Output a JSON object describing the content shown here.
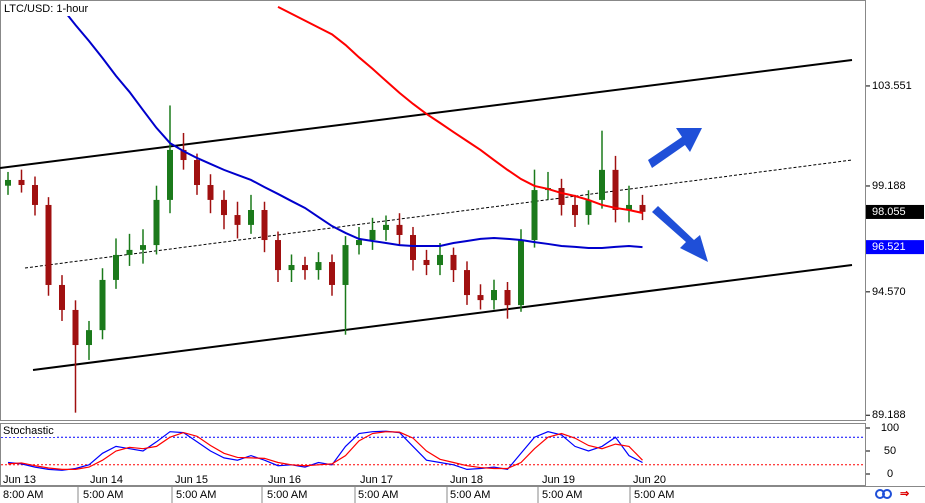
{
  "chart_data": {
    "type": "candlestick",
    "title": "LTC/USD: 1-hour",
    "up_color": "#1b7a1b",
    "down_color": "#a01010",
    "open": [
      99.2,
      99.45,
      99.23,
      98.36,
      94.87,
      93.78,
      92.25,
      92.9,
      95.09,
      96.18,
      96.4,
      96.61,
      98.58,
      100.76,
      100.32,
      99.23,
      98.58,
      97.92,
      97.49,
      98.14,
      96.83,
      95.52,
      95.74,
      95.52,
      95.87,
      94.87,
      96.61,
      96.83,
      97.27,
      97.49,
      97.05,
      95.96,
      95.74,
      96.18,
      95.52,
      94.43,
      94.21,
      94.65,
      93.99,
      96.83,
      99.01,
      99.1,
      98.36,
      97.92,
      98.58,
      99.89,
      98.14,
      98.36
    ],
    "high": [
      99.8,
      99.9,
      99.6,
      98.7,
      95.3,
      94.2,
      93.3,
      95.6,
      96.9,
      97.1,
      97.3,
      99.2,
      102.7,
      101.5,
      100.6,
      99.7,
      99.0,
      98.5,
      98.8,
      98.5,
      97.2,
      96.2,
      96.1,
      96.3,
      96.2,
      97.0,
      97.4,
      97.8,
      97.9,
      98.0,
      97.4,
      96.4,
      96.7,
      96.5,
      95.9,
      94.9,
      95.1,
      95.0,
      97.3,
      99.9,
      99.8,
      99.5,
      98.8,
      99.0,
      101.6,
      100.5,
      99.2,
      98.8
    ],
    "low": [
      98.8,
      98.9,
      97.9,
      94.4,
      93.3,
      89.3,
      91.6,
      92.5,
      94.7,
      95.7,
      95.8,
      96.2,
      98.0,
      99.9,
      98.8,
      98.0,
      97.3,
      96.9,
      97.1,
      96.3,
      95.0,
      95.0,
      95.1,
      95.1,
      94.4,
      92.7,
      96.2,
      96.4,
      96.8,
      96.6,
      95.5,
      95.3,
      95.3,
      95.0,
      94.0,
      93.8,
      93.8,
      93.4,
      93.7,
      96.5,
      98.6,
      97.9,
      97.4,
      97.5,
      98.2,
      97.6,
      97.6,
      97.7
    ],
    "close": [
      99.45,
      99.23,
      98.36,
      94.87,
      93.78,
      92.25,
      92.9,
      95.09,
      96.18,
      96.4,
      96.61,
      98.58,
      100.76,
      100.32,
      99.23,
      98.58,
      97.92,
      97.49,
      98.14,
      96.83,
      95.52,
      95.74,
      95.52,
      95.87,
      94.87,
      96.61,
      96.83,
      97.27,
      97.49,
      97.05,
      95.96,
      95.74,
      96.18,
      95.52,
      94.43,
      94.21,
      94.65,
      93.99,
      96.83,
      99.01,
      99.1,
      98.36,
      97.92,
      98.58,
      99.89,
      98.14,
      98.36,
      98.06
    ],
    "moving_averages": [
      {
        "color": "#ff0000",
        "values": [
          null,
          null,
          null,
          null,
          null,
          null,
          null,
          null,
          null,
          null,
          null,
          null,
          null,
          null,
          null,
          null,
          null,
          null,
          null,
          null,
          107.0,
          106.7,
          106.4,
          106.1,
          105.8,
          105.34,
          104.8,
          104.3,
          103.77,
          103.25,
          102.77,
          102.33,
          101.94,
          101.54,
          101.15,
          100.76,
          100.32,
          99.89,
          99.49,
          99.19,
          99.06,
          98.88,
          98.75,
          98.58,
          98.36,
          98.23,
          98.14,
          98.01
        ]
      },
      {
        "color": "#0000cc",
        "values": [
          null,
          null,
          null,
          null,
          106.95,
          106.21,
          105.51,
          104.77,
          103.99,
          103.29,
          102.5,
          101.72,
          101.06,
          100.71,
          100.41,
          100.15,
          99.89,
          99.67,
          99.45,
          99.14,
          98.84,
          98.53,
          98.23,
          97.83,
          97.44,
          97.14,
          96.88,
          96.79,
          96.7,
          96.61,
          96.57,
          96.57,
          96.57,
          96.7,
          96.79,
          96.88,
          96.92,
          96.88,
          96.83,
          96.74,
          96.66,
          96.57,
          96.53,
          96.48,
          96.48,
          96.53,
          96.57,
          96.52
        ]
      }
    ],
    "ylim": [
      88.98,
      107.3
    ],
    "yticks": [
      103.551,
      99.188,
      {
        "value": 94.57,
        "label": "94.570"
      },
      89.188
    ],
    "price_labels": [
      {
        "value": 98.055,
        "color": "#000000"
      },
      {
        "value": 96.521,
        "color": "#0000ff"
      }
    ],
    "date_labels": [
      "Jun 13",
      "Jun 14",
      "Jun 15",
      "Jun 16",
      "Jun 17",
      "Jun 18",
      "Jun 19",
      "Jun 20"
    ],
    "time_labels": [
      "8:00 AM",
      "5:00 AM",
      "5:00 AM",
      "5:00 AM",
      "5:00 AM",
      "5:00 AM",
      "5:00 AM",
      "5:00 AM"
    ],
    "stochastic": {
      "title": "Stochastic",
      "ylim": [
        0,
        100
      ],
      "yticks": [
        100,
        50,
        0
      ],
      "levels": [
        {
          "value": 80,
          "color": "#0000ff"
        },
        {
          "value": 20,
          "color": "#ff0000"
        }
      ],
      "series": [
        {
          "color": "#0000ff",
          "values": [
            25,
            22,
            15,
            10,
            8,
            12,
            20,
            45,
            60,
            55,
            50,
            70,
            92,
            90,
            70,
            50,
            35,
            30,
            40,
            30,
            18,
            20,
            15,
            25,
            20,
            60,
            88,
            92,
            93,
            90,
            60,
            30,
            25,
            20,
            10,
            12,
            15,
            10,
            45,
            80,
            92,
            85,
            60,
            50,
            60,
            80,
            40,
            25
          ]
        },
        {
          "color": "#ff0000",
          "values": [
            22,
            24,
            18,
            13,
            10,
            10,
            15,
            30,
            50,
            58,
            55,
            60,
            80,
            90,
            82,
            62,
            45,
            36,
            35,
            34,
            25,
            20,
            18,
            20,
            22,
            40,
            72,
            88,
            92,
            91,
            78,
            50,
            32,
            25,
            18,
            14,
            12,
            12,
            25,
            55,
            80,
            88,
            78,
            62,
            55,
            65,
            60,
            30
          ]
        }
      ]
    }
  }
}
